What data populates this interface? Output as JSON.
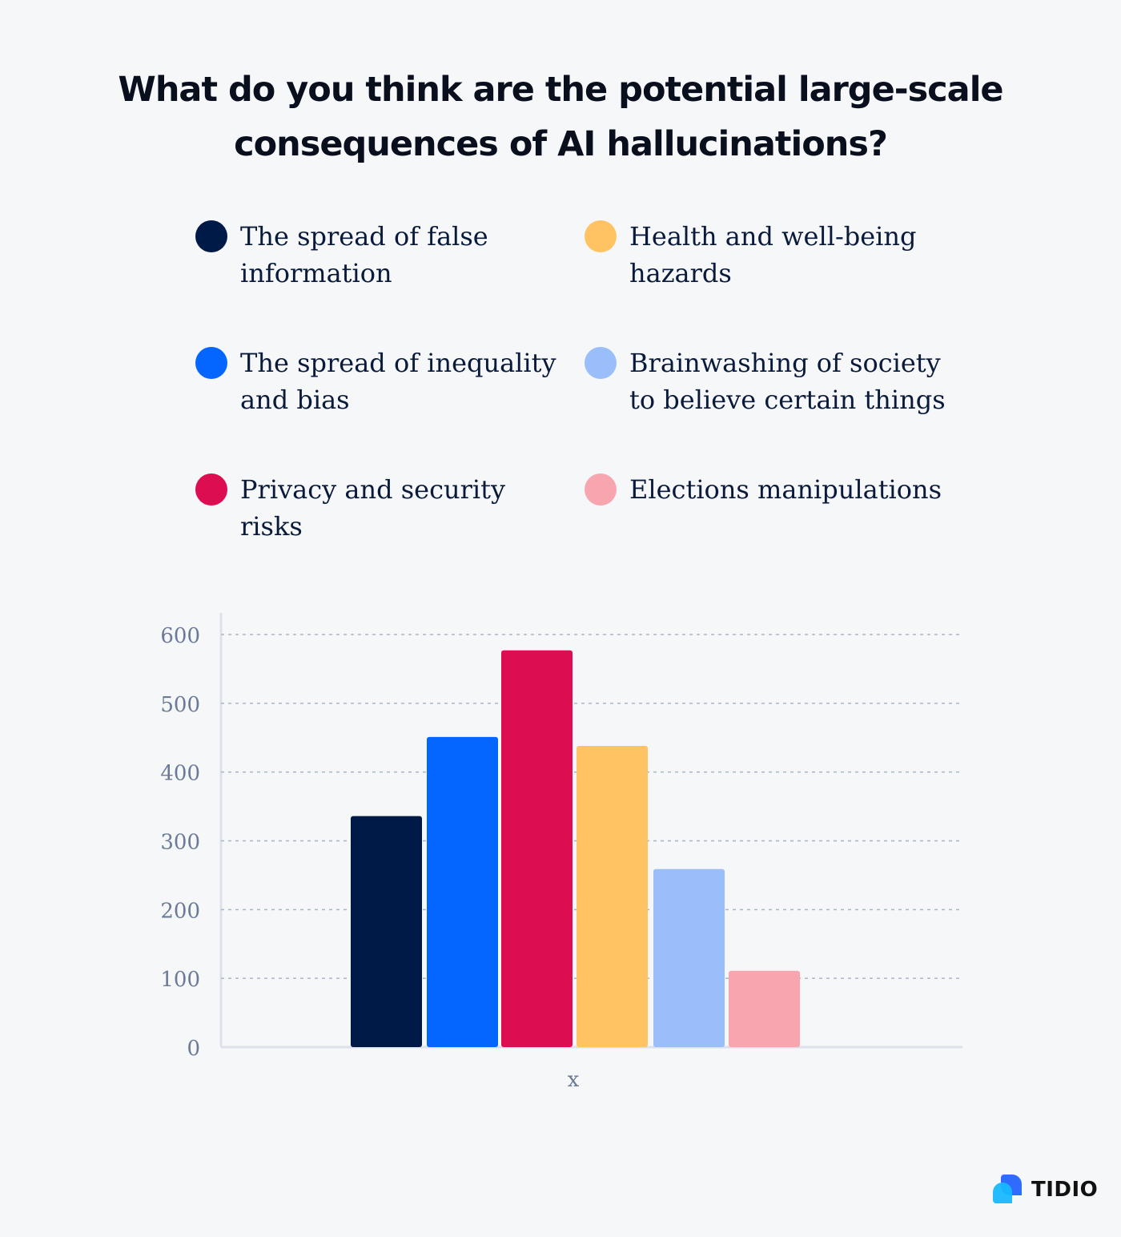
{
  "chart_data": {
    "type": "bar",
    "title": "What do you think are the potential large-scale consequences of AI hallucinations?",
    "xlabel": "x",
    "ylabel": "",
    "categories": [
      "x"
    ],
    "series": [
      {
        "name": "The spread of false information",
        "values": [
          336
        ],
        "color": "#001a47"
      },
      {
        "name": "The spread of inequality and bias",
        "values": [
          451
        ],
        "color": "#0565ff"
      },
      {
        "name": "Privacy and security risks",
        "values": [
          577
        ],
        "color": "#dc0d50"
      },
      {
        "name": "Health and well-being hazards",
        "values": [
          438
        ],
        "color": "#ffc364"
      },
      {
        "name": "Brainwashing of society to believe certain things",
        "values": [
          259
        ],
        "color": "#99bef9"
      },
      {
        "name": "Elections manipulations",
        "values": [
          111
        ],
        "color": "#f7a6b0"
      }
    ],
    "yticks": [
      "0",
      "100",
      "200",
      "300",
      "400",
      "500",
      "600"
    ],
    "ylim": [
      0,
      600
    ],
    "grid": true,
    "legend_position": "top"
  },
  "brand": {
    "name": "TIDIO"
  }
}
